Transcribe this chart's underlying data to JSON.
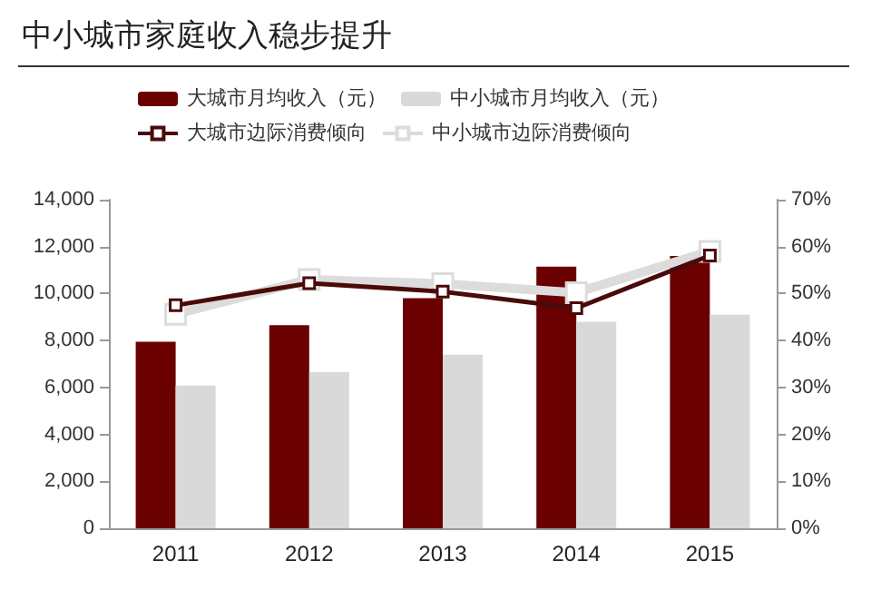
{
  "chart_data": {
    "type": "bar",
    "title": "中小城市家庭收入稳步提升",
    "categories": [
      "2011",
      "2012",
      "2013",
      "2014",
      "2015"
    ],
    "series": [
      {
        "name": "大城市月均收入（元）",
        "color": "#6b0000",
        "values": [
          7950,
          8650,
          9800,
          11150,
          11600
        ]
      },
      {
        "name": "中小城市月均收入（元）",
        "color": "#d9d9d9",
        "values": [
          6080,
          6650,
          7400,
          8800,
          9100
        ]
      },
      {
        "name": "大城市边际消费倾向",
        "type": "line",
        "axis": "y2",
        "color": "#4a0a0a",
        "values": [
          47.5,
          52.2,
          50.4,
          46.9,
          58.1
        ]
      },
      {
        "name": "中小城市边际消费倾向",
        "type": "line",
        "axis": "y2",
        "color": "#dcdcdc",
        "values": [
          45.6,
          53,
          52.1,
          50.2,
          59
        ]
      }
    ],
    "ylim": [
      0,
      14000
    ],
    "yticks": [
      {
        "value": 0,
        "label": "0"
      },
      {
        "value": 2000,
        "label": "2,000"
      },
      {
        "value": 4000,
        "label": "4,000"
      },
      {
        "value": 6000,
        "label": "6,000"
      },
      {
        "value": 8000,
        "label": "8,000"
      },
      {
        "value": 10000,
        "label": "10,000"
      },
      {
        "value": 12000,
        "label": "12,000"
      },
      {
        "value": 14000,
        "label": "14,000"
      }
    ],
    "y2lim": [
      0,
      70
    ],
    "y2ticks": [
      {
        "value": 0,
        "label": "0%"
      },
      {
        "value": 10,
        "label": "10%"
      },
      {
        "value": 20,
        "label": "20%"
      },
      {
        "value": 30,
        "label": "30%"
      },
      {
        "value": 40,
        "label": "40%"
      },
      {
        "value": 50,
        "label": "50%"
      },
      {
        "value": 60,
        "label": "60%"
      },
      {
        "value": 70,
        "label": "70%"
      }
    ],
    "marker": "square",
    "grid": false,
    "legend": "top"
  }
}
